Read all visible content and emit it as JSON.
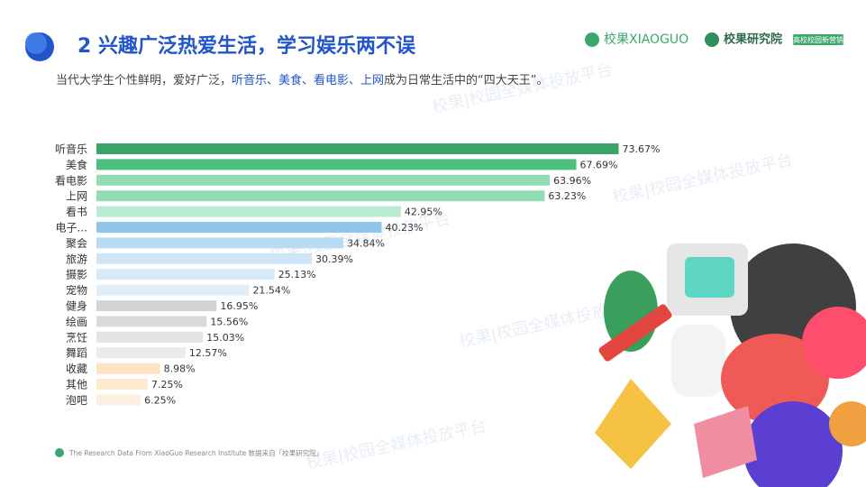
{
  "header": {
    "title": "2 兴趣广泛热爱生活，学习娱乐两不误",
    "subtitle": [
      "当代大学生个性鲜明，爱好广泛，",
      "听音乐、美食、看电影、上网",
      "成为日常生活中的“四大天王”。"
    ],
    "logo1": "校果XIAOGUO",
    "logo2": "校果研究院",
    "logo2_tag": "高校校园新营销"
  },
  "watermark": "校果|校园全媒体投放平台",
  "footer": "The Research Data  From XiaoGuo Research Institute 数据来自「校果研究院」",
  "chart_data": {
    "type": "hbar",
    "categories": [
      "听音乐",
      "美食",
      "看电影",
      "上网",
      "看书",
      "电子...",
      "聚会",
      "旅游",
      "摄影",
      "宠物",
      "健身",
      "绘画",
      "烹饪",
      "舞蹈",
      "收藏",
      "其他",
      "泡吧"
    ],
    "values": [
      73.67,
      67.69,
      63.96,
      63.23,
      42.95,
      40.23,
      34.84,
      30.39,
      25.13,
      21.54,
      16.95,
      15.56,
      15.03,
      12.57,
      8.98,
      7.25,
      6.25
    ],
    "value_labels": [
      "73.67%",
      "67.69%",
      "63.96%",
      "63.23%",
      "42.95%",
      "40.23%",
      "34.84%",
      "30.39%",
      "25.13%",
      "21.54%",
      "16.95%",
      "15.56%",
      "15.03%",
      "12.57%",
      "8.98%",
      "7.25%",
      "6.25%"
    ],
    "colors": [
      "#38a468",
      "#4dbf7e",
      "#93dcb3",
      "#93dcb3",
      "#b9ecd1",
      "#8fc6ea",
      "#b8dcf3",
      "#cde5f7",
      "#d8eaf8",
      "#dfedf8",
      "#d4d4d4",
      "#dadada",
      "#e4e4e4",
      "#ebebeb",
      "#fde2c4",
      "#fde8d0",
      "#feeedf"
    ],
    "xlim": [
      0,
      75
    ]
  }
}
